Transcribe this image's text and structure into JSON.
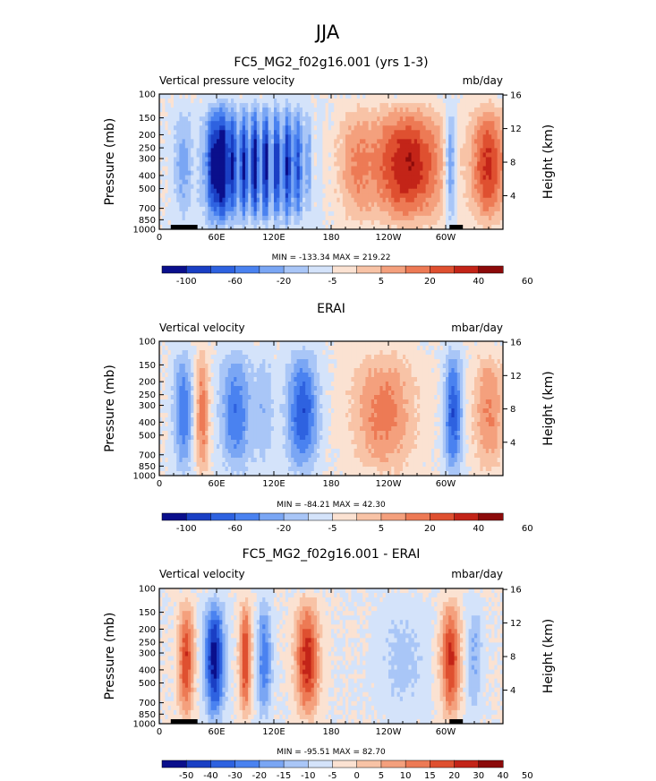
{
  "page_title": "JJA",
  "chart_data": [
    {
      "type": "heatmap",
      "title": "FC5_MG2_f02g16.001 (yrs 1-3)",
      "left_subtitle": "Vertical pressure velocity",
      "right_subtitle": "mb/day",
      "ylabel": "Pressure (mb)",
      "ylabel_right": "Height (km)",
      "x_ticks": [
        "0",
        "60E",
        "120E",
        "180",
        "120W",
        "60W"
      ],
      "x_tick_lon": [
        0,
        60,
        120,
        180,
        240,
        300
      ],
      "xlim": [
        0,
        360
      ],
      "y_ticks": [
        "100",
        "150",
        "200",
        "250",
        "300",
        "400",
        "500",
        "700",
        "850",
        "1000"
      ],
      "y_tick_p": [
        100,
        150,
        200,
        250,
        300,
        400,
        500,
        700,
        850,
        1000
      ],
      "ylim": [
        1000,
        100
      ],
      "y_scale": "log",
      "y_right_ticks": [
        "4",
        "8",
        "12",
        "16"
      ],
      "y_right_km": [
        4,
        8,
        12,
        16
      ],
      "min_max_text": "MIN = -133.34   MAX = 219.22",
      "colorbar_levels": [
        "-100",
        "-60",
        "-20",
        "-5",
        "5",
        "20",
        "40",
        "60"
      ],
      "colorbar_colors": [
        "#0a0f8c",
        "#1a3fc4",
        "#2e62e0",
        "#4a82f0",
        "#7aa6f4",
        "#a9c6f7",
        "#d4e3fa",
        "#fbe2d2",
        "#f8c3a6",
        "#f4a07d",
        "#ed7a55",
        "#df5030",
        "#c32418",
        "#8c0a0a"
      ],
      "colorbar_label_boxes": [
        1,
        3,
        5,
        7,
        9,
        11,
        13,
        15
      ],
      "topography_lon": [
        [
          12,
          40
        ],
        [
          304,
          318
        ]
      ]
    },
    {
      "type": "heatmap",
      "title": "ERAI",
      "left_subtitle": "Vertical velocity",
      "right_subtitle": "mbar/day",
      "ylabel": "Pressure (mb)",
      "ylabel_right": "Height (km)",
      "x_ticks": [
        "0",
        "60E",
        "120E",
        "180",
        "120W",
        "60W"
      ],
      "x_tick_lon": [
        0,
        60,
        120,
        180,
        240,
        300
      ],
      "xlim": [
        0,
        360
      ],
      "y_ticks": [
        "100",
        "150",
        "200",
        "250",
        "300",
        "400",
        "500",
        "700",
        "850",
        "1000"
      ],
      "y_tick_p": [
        100,
        150,
        200,
        250,
        300,
        400,
        500,
        700,
        850,
        1000
      ],
      "ylim": [
        1000,
        100
      ],
      "y_scale": "log",
      "y_right_ticks": [
        "4",
        "8",
        "12",
        "16"
      ],
      "y_right_km": [
        4,
        8,
        12,
        16
      ],
      "min_max_text": "MIN = -84.21   MAX = 42.30",
      "colorbar_levels": [
        "-100",
        "-60",
        "-20",
        "-5",
        "5",
        "20",
        "40",
        "60"
      ],
      "colorbar_colors": [
        "#0a0f8c",
        "#1a3fc4",
        "#2e62e0",
        "#4a82f0",
        "#7aa6f4",
        "#a9c6f7",
        "#d4e3fa",
        "#fbe2d2",
        "#f8c3a6",
        "#f4a07d",
        "#ed7a55",
        "#df5030",
        "#c32418",
        "#8c0a0a"
      ],
      "colorbar_label_boxes": [
        1,
        3,
        5,
        7,
        9,
        11,
        13,
        15
      ],
      "topography_lon": []
    },
    {
      "type": "heatmap",
      "title": "FC5_MG2_f02g16.001 - ERAI",
      "left_subtitle": "Vertical velocity",
      "right_subtitle": "mbar/day",
      "ylabel": "Pressure (mb)",
      "ylabel_right": "Height (km)",
      "x_ticks": [
        "0",
        "60E",
        "120E",
        "180",
        "120W",
        "60W"
      ],
      "x_tick_lon": [
        0,
        60,
        120,
        180,
        240,
        300
      ],
      "xlim": [
        0,
        360
      ],
      "y_ticks": [
        "100",
        "150",
        "200",
        "250",
        "300",
        "400",
        "500",
        "700",
        "850",
        "1000"
      ],
      "y_tick_p": [
        100,
        150,
        200,
        250,
        300,
        400,
        500,
        700,
        850,
        1000
      ],
      "ylim": [
        1000,
        100
      ],
      "y_scale": "log",
      "y_right_ticks": [
        "4",
        "8",
        "12",
        "16"
      ],
      "y_right_km": [
        4,
        8,
        12,
        16
      ],
      "min_max_text": "MIN = -95.51   MAX = 82.70",
      "colorbar_levels": [
        "-50",
        "-40",
        "-30",
        "-20",
        "-15",
        "-10",
        "-5",
        "0",
        "5",
        "10",
        "15",
        "20",
        "30",
        "40",
        "50"
      ],
      "colorbar_colors": [
        "#0a0f8c",
        "#1a3fc4",
        "#2e62e0",
        "#4a82f0",
        "#7aa6f4",
        "#a9c6f7",
        "#d4e3fa",
        "#fbe2d2",
        "#f8c3a6",
        "#f4a07d",
        "#ed7a55",
        "#df5030",
        "#c32418",
        "#8c0a0a"
      ],
      "colorbar_label_boxes": [
        1,
        2,
        3,
        4,
        5,
        6,
        7,
        8,
        9,
        10,
        11,
        12,
        13,
        14,
        15
      ],
      "topography_lon": [
        [
          12,
          40
        ],
        [
          304,
          318
        ]
      ]
    }
  ]
}
